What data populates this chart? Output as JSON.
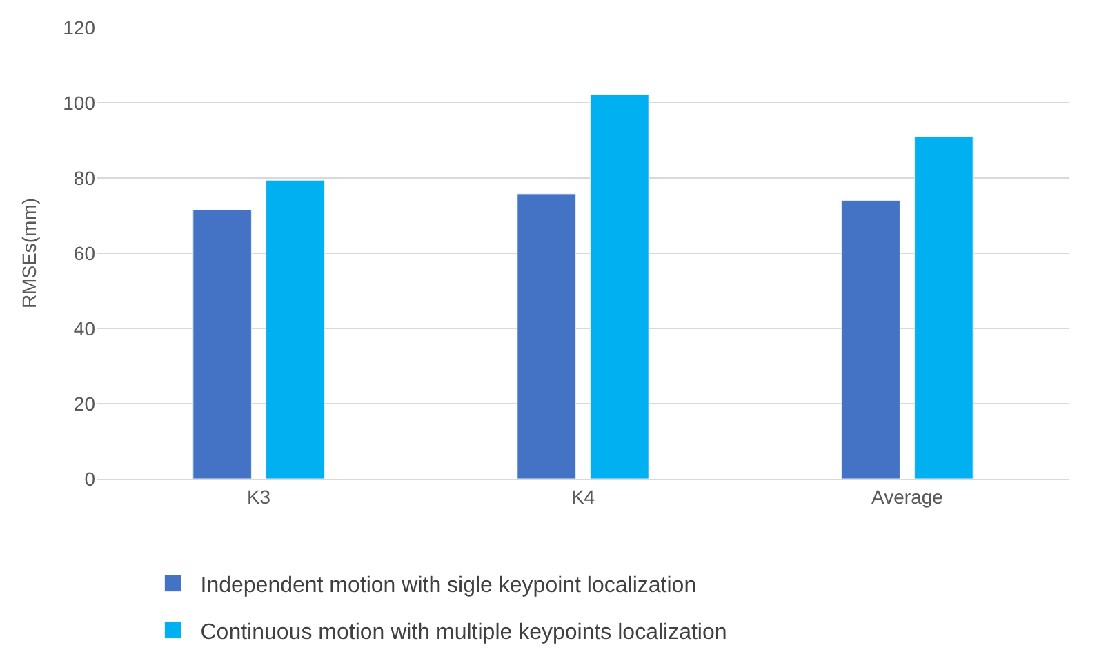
{
  "chart_data": {
    "type": "bar",
    "ylabel": "RMSEs(mm)",
    "categories": [
      "K3",
      "K4",
      "Average"
    ],
    "series": [
      {
        "name": "Independent motion with sigle keypoint localization",
        "color": "#4472c4",
        "values": [
          71.5,
          75.8,
          74
        ]
      },
      {
        "name": "Continuous motion with multiple keypoints localization",
        "color": "#00b0f0",
        "values": [
          79.4,
          102.2,
          91
        ]
      }
    ],
    "ylim": [
      0,
      120
    ],
    "yticks": [
      0,
      20,
      40,
      60,
      80,
      100,
      120
    ],
    "grid": "y",
    "legend": "bottom"
  }
}
